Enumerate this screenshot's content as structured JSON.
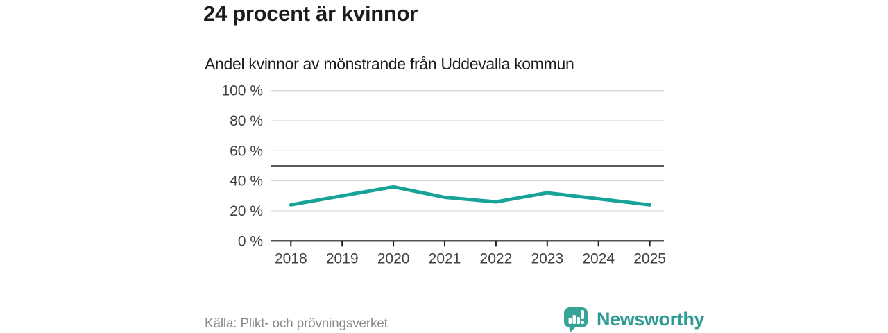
{
  "header": {
    "title": "24 procent är kvinnor"
  },
  "chart_data": {
    "type": "line",
    "subtitle": "Andel kvinnor av mönstrande från Uddevalla kommun",
    "x": [
      2018,
      2019,
      2020,
      2021,
      2022,
      2023,
      2024,
      2025
    ],
    "x_labels": [
      "2018",
      "2019",
      "2020",
      "2021",
      "2022",
      "2023",
      "2024",
      "2025"
    ],
    "series": [
      {
        "name": "Andel kvinnor",
        "values": [
          24,
          30,
          36,
          29,
          26,
          32,
          28,
          24
        ],
        "color": "#17a398"
      }
    ],
    "ylim": [
      0,
      100
    ],
    "yticks": [
      0,
      20,
      40,
      60,
      80,
      100
    ],
    "ytick_labels": [
      "0 %",
      "20 %",
      "40 %",
      "60 %",
      "80 %",
      "100 %"
    ],
    "reference_line": 50,
    "grid": "horizontal",
    "legend": "none"
  },
  "footer": {
    "source": "Källa: Plikt- och prövningsverket",
    "brand": "Newsworthy"
  },
  "colors": {
    "line": "#17a398",
    "grid": "#d9d9d9",
    "reference_line": "#595959",
    "axis": "#1a1a1a",
    "tick_text": "#404040",
    "brand_teal": "#2e9a93",
    "logo_bubble": "#35a398"
  }
}
